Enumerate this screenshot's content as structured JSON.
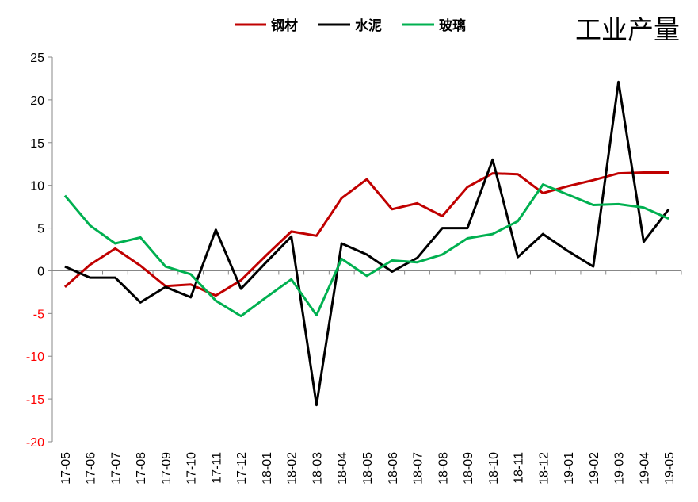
{
  "chart_data": {
    "type": "line",
    "title": "工业产量",
    "categories": [
      "17-05",
      "17-06",
      "17-07",
      "17-08",
      "17-09",
      "17-10",
      "17-11",
      "17-12",
      "18-01",
      "18-02",
      "18-03",
      "18-04",
      "18-05",
      "18-06",
      "18-07",
      "18-08",
      "18-09",
      "18-10",
      "18-11",
      "18-12",
      "19-01",
      "19-02",
      "19-03",
      "19-04",
      "19-05"
    ],
    "ylim": [
      -20,
      25
    ],
    "yticks": [
      25,
      20,
      15,
      10,
      5,
      0,
      -5,
      -10,
      -15,
      -20
    ],
    "ytick_labels": [
      "25",
      "20",
      "15",
      "10",
      "5",
      "0",
      "-5",
      "-10",
      "-15",
      "-20"
    ],
    "negative_tick_color": "#ff0000",
    "grid": false,
    "legend": "top-center",
    "series": [
      {
        "name": "钢材",
        "color": "#c00000",
        "values": [
          -1.9,
          0.7,
          2.6,
          0.6,
          -1.8,
          -1.6,
          -2.9,
          -1.1,
          1.8,
          4.6,
          4.1,
          8.5,
          10.7,
          7.2,
          7.9,
          6.4,
          9.8,
          11.4,
          11.3,
          9.1,
          9.9,
          10.6,
          11.4,
          11.5,
          11.5
        ]
      },
      {
        "name": "水泥",
        "color": "#000000",
        "values": [
          0.5,
          -0.8,
          -0.8,
          -3.7,
          -1.9,
          -3.1,
          4.8,
          -2.1,
          1.0,
          4.0,
          -15.7,
          3.2,
          1.9,
          -0.1,
          1.5,
          5.0,
          5.0,
          13.0,
          1.6,
          4.3,
          2.3,
          0.5,
          22.1,
          3.4,
          7.2
        ]
      },
      {
        "name": "玻璃",
        "color": "#00b050",
        "values": [
          8.8,
          5.3,
          3.2,
          3.9,
          0.5,
          -0.4,
          -3.5,
          -5.3,
          -3.1,
          -1.0,
          -5.2,
          1.4,
          -0.6,
          1.2,
          1.0,
          1.9,
          3.8,
          4.3,
          5.8,
          10.1,
          8.9,
          7.7,
          7.8,
          7.4,
          6.1
        ]
      }
    ]
  }
}
